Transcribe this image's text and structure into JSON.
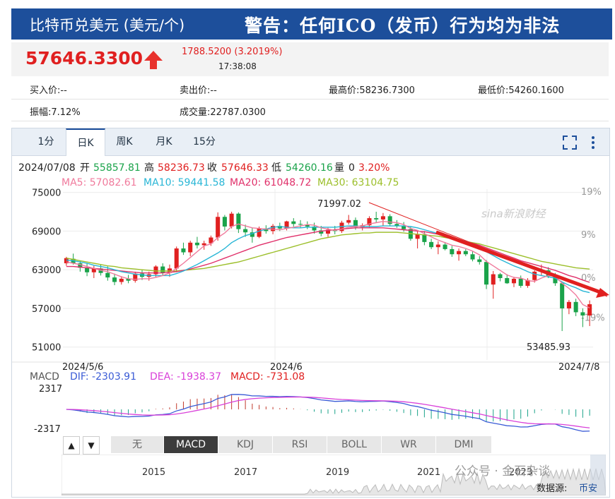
{
  "banner": {
    "title": "比特币兑美元 (美元/个)",
    "warning": "警告：任何ICO（发币）行为均为非法"
  },
  "quote": {
    "price": "57646.3300",
    "change": "1788.5200 (3.2019%)",
    "time": "17:38:08"
  },
  "stats": {
    "bid": "买入价:--",
    "ask": "卖出价:--",
    "high": "最高价:58236.7300",
    "low": "最低价:54260.1600",
    "amplitude": "振幅:7.12%",
    "volume": "成交量:22787.0300"
  },
  "tabs": [
    "1分",
    "日K",
    "周K",
    "月K",
    "15分"
  ],
  "selected_tab": "日K",
  "ohlc_line": {
    "date": "2024/07/08",
    "open_label": "开",
    "open": "55857.81",
    "high_label": "高",
    "high": "58236.73",
    "close_label": "收",
    "close": "57646.33",
    "low_label": "低",
    "low": "54260.16",
    "vol_label": "量",
    "vol": "0",
    "pct": "3.20%"
  },
  "ma_line": {
    "ma5": "MA5: 57082.61",
    "ma10": "MA10: 59441.58",
    "ma20": "MA20: 61048.72",
    "ma30": "MA30: 63104.75"
  },
  "annotations": {
    "peak": "71997.02",
    "trough": "53485.93",
    "watermark": "sina新浪财经"
  },
  "macd_line": {
    "label": "MACD",
    "dif": "DIF: -2303.91",
    "dea": "DEA: -1938.37",
    "macd": "MACD: -731.08"
  },
  "macd_axis": {
    "top": "2317",
    "bottom": "-2317"
  },
  "indicator_buttons": [
    "无",
    "MACD",
    "KDJ",
    "RSI",
    "BOLL",
    "WR",
    "DMI"
  ],
  "selected_indicator": "MACD",
  "overview_years": [
    "2015",
    "2017",
    "2019",
    "2021",
    "2023"
  ],
  "footer": {
    "watermark": "公众号 · 金石杂谈",
    "source": "数据源:",
    "source_name": "币安"
  },
  "colors": {
    "up": "#e02020",
    "down": "#1aa34a",
    "ma5": "#f07a9c",
    "ma10": "#28b6d6",
    "ma20": "#e0306a",
    "ma30": "#9cbf2a",
    "dif": "#3a5bd6",
    "dea": "#d940d9",
    "banner": "#1d4f9b"
  },
  "chart_data": {
    "type": "candlestick",
    "x_ticks": [
      "2024/5/6",
      "2024/6",
      "2024/7/8"
    ],
    "y_ticks": [
      75000,
      69000,
      63000,
      57000,
      51000
    ],
    "ylim": [
      49000,
      75500
    ],
    "pct_ticks": [
      "19%",
      "9%",
      "0%",
      "-19%"
    ],
    "candles": [
      [
        64000,
        65000,
        63600,
        64800
      ],
      [
        64700,
        65500,
        63800,
        64000
      ],
      [
        64000,
        64400,
        62700,
        63300
      ],
      [
        63300,
        64000,
        62000,
        62600
      ],
      [
        62600,
        63600,
        61700,
        63200
      ],
      [
        63200,
        63800,
        62100,
        62500
      ],
      [
        62500,
        63500,
        61300,
        61800
      ],
      [
        61800,
        62400,
        60600,
        61100
      ],
      [
        61100,
        62000,
        60700,
        61600
      ],
      [
        61600,
        62200,
        60900,
        61300
      ],
      [
        61300,
        62700,
        61000,
        62400
      ],
      [
        62400,
        63000,
        61400,
        61900
      ],
      [
        61900,
        62700,
        61300,
        62300
      ],
      [
        62300,
        63700,
        61900,
        63500
      ],
      [
        63500,
        64000,
        62100,
        62500
      ],
      [
        62500,
        63800,
        61900,
        63200
      ],
      [
        63200,
        66600,
        62600,
        66300
      ],
      [
        66300,
        67200,
        65300,
        65700
      ],
      [
        65700,
        67500,
        65100,
        67200
      ],
      [
        67200,
        68100,
        66300,
        66800
      ],
      [
        66800,
        67500,
        66100,
        67100
      ],
      [
        67100,
        68300,
        66700,
        68000
      ],
      [
        68000,
        71900,
        67500,
        71200
      ],
      [
        71200,
        71500,
        69100,
        69700
      ],
      [
        69700,
        72000,
        69400,
        71700
      ],
      [
        71700,
        71900,
        68700,
        69300
      ],
      [
        69300,
        70000,
        68100,
        68800
      ],
      [
        68800,
        69500,
        67200,
        68100
      ],
      [
        68100,
        69700,
        67900,
        69400
      ],
      [
        69400,
        69900,
        68600,
        69000
      ],
      [
        69000,
        70100,
        68500,
        69800
      ],
      [
        69800,
        70300,
        69000,
        69400
      ],
      [
        69400,
        70600,
        69100,
        70500
      ],
      [
        70500,
        71000,
        69700,
        70100
      ],
      [
        70100,
        70700,
        69500,
        70000
      ],
      [
        70000,
        70500,
        69300,
        69700
      ],
      [
        69700,
        70300,
        68600,
        69100
      ],
      [
        69100,
        69800,
        68200,
        68600
      ],
      [
        68600,
        69500,
        68100,
        69200
      ],
      [
        69200,
        69800,
        68500,
        69000
      ],
      [
        69000,
        70600,
        68700,
        70300
      ],
      [
        70300,
        71500,
        70000,
        70700
      ],
      [
        70700,
        71100,
        69200,
        69600
      ],
      [
        69600,
        70200,
        69100,
        69900
      ],
      [
        69900,
        71300,
        69500,
        71000
      ],
      [
        71000,
        71997,
        70300,
        70800
      ],
      [
        70800,
        71800,
        69800,
        71300
      ],
      [
        71300,
        71600,
        69800,
        70100
      ],
      [
        70100,
        70700,
        69500,
        69800
      ],
      [
        69800,
        70400,
        68900,
        69300
      ],
      [
        69300,
        69700,
        67500,
        67800
      ],
      [
        67800,
        69100,
        66300,
        68500
      ],
      [
        68500,
        69000,
        66800,
        67300
      ],
      [
        67300,
        67800,
        66200,
        66500
      ],
      [
        66500,
        67400,
        65400,
        66900
      ],
      [
        66900,
        67300,
        66000,
        66200
      ],
      [
        66200,
        66700,
        65000,
        65400
      ],
      [
        65400,
        66300,
        64400,
        65900
      ],
      [
        65900,
        66200,
        65100,
        65400
      ],
      [
        65400,
        65900,
        64300,
        64600
      ],
      [
        64600,
        65100,
        63800,
        64200
      ],
      [
        64200,
        64500,
        60000,
        60700
      ],
      [
        60700,
        62800,
        58500,
        62300
      ],
      [
        62300,
        62500,
        61200,
        61700
      ],
      [
        61700,
        62300,
        60800,
        60900
      ],
      [
        60900,
        61900,
        60300,
        61600
      ],
      [
        61600,
        62100,
        60200,
        60500
      ],
      [
        60500,
        61700,
        60200,
        61400
      ],
      [
        61400,
        62900,
        61000,
        62700
      ],
      [
        62700,
        63800,
        62100,
        62900
      ],
      [
        62900,
        63400,
        61700,
        62000
      ],
      [
        62000,
        62500,
        60500,
        60900
      ],
      [
        60900,
        61100,
        53486,
        57000
      ],
      [
        57000,
        58300,
        56100,
        58000
      ],
      [
        58000,
        58500,
        55800,
        56400
      ],
      [
        56400,
        57000,
        54100,
        55900
      ],
      [
        55900,
        58237,
        54260,
        57646
      ]
    ],
    "ma5": [
      64200,
      64000,
      63800,
      63500,
      63200,
      62900,
      62700,
      62300,
      61900,
      61600,
      61500,
      61600,
      61600,
      61800,
      62100,
      62500,
      63200,
      64000,
      64900,
      65800,
      66700,
      67000,
      68000,
      68700,
      69700,
      70100,
      69800,
      69500,
      69400,
      69300,
      69300,
      69200,
      69400,
      69600,
      69800,
      70000,
      69900,
      69500,
      69300,
      69100,
      69300,
      69600,
      69700,
      69800,
      70100,
      70300,
      70500,
      70400,
      70300,
      70000,
      69400,
      69100,
      68600,
      68100,
      67600,
      67200,
      66800,
      66600,
      66300,
      65900,
      65300,
      64300,
      63600,
      62900,
      62200,
      61800,
      61700,
      61300,
      61200,
      61700,
      62100,
      62000,
      60900,
      60100,
      59100,
      57600,
      57082
    ],
    "ma10": [
      64500,
      64400,
      64200,
      64000,
      63700,
      63500,
      63300,
      63000,
      62700,
      62500,
      62300,
      62200,
      62100,
      62100,
      62100,
      62100,
      62400,
      62800,
      63300,
      63800,
      64400,
      65000,
      65600,
      66300,
      67200,
      67800,
      68300,
      68600,
      69000,
      69300,
      69600,
      69700,
      69600,
      69500,
      69500,
      69600,
      69600,
      69600,
      69600,
      69600,
      69700,
      69800,
      69800,
      69700,
      69700,
      69700,
      69800,
      69800,
      69800,
      69800,
      69700,
      69500,
      69200,
      68900,
      68600,
      68300,
      68000,
      67700,
      67400,
      67000,
      66500,
      65800,
      65200,
      64600,
      64100,
      63600,
      63200,
      62700,
      62300,
      62100,
      61900,
      61700,
      61100,
      60600,
      60200,
      59700,
      59442
    ],
    "ma20": [
      63500,
      63500,
      63400,
      63300,
      63200,
      63100,
      63000,
      62900,
      62800,
      62700,
      62600,
      62500,
      62500,
      62500,
      62500,
      62600,
      62700,
      62900,
      63100,
      63400,
      63700,
      64000,
      64400,
      64800,
      65200,
      65600,
      66000,
      66400,
      66800,
      67100,
      67400,
      67700,
      68000,
      68200,
      68400,
      68600,
      68800,
      69000,
      69100,
      69200,
      69300,
      69400,
      69500,
      69500,
      69500,
      69500,
      69500,
      69400,
      69300,
      69200,
      69100,
      69000,
      68900,
      68700,
      68500,
      68200,
      68000,
      67700,
      67400,
      67100,
      66800,
      66400,
      66000,
      65600,
      65200,
      64800,
      64400,
      64100,
      63800,
      63500,
      63200,
      62900,
      62500,
      62100,
      61800,
      61400,
      61049
    ],
    "ma30": [
      64800,
      64600,
      64400,
      64200,
      64000,
      63800,
      63600,
      63500,
      63300,
      63200,
      63100,
      63000,
      62900,
      62800,
      62800,
      62800,
      62800,
      62900,
      63000,
      63100,
      63200,
      63400,
      63600,
      63800,
      64000,
      64200,
      64500,
      64800,
      65100,
      65400,
      65700,
      66000,
      66300,
      66600,
      66900,
      67200,
      67500,
      67800,
      68000,
      68200,
      68400,
      68500,
      68600,
      68700,
      68700,
      68800,
      68800,
      68800,
      68800,
      68700,
      68600,
      68500,
      68400,
      68300,
      68200,
      68000,
      67800,
      67600,
      67400,
      67200,
      67000,
      66700,
      66400,
      66100,
      65800,
      65500,
      65200,
      64900,
      64600,
      64300,
      64100,
      63900,
      63700,
      63500,
      63300,
      63200,
      63105
    ],
    "macd_ylim": [
      -2600,
      2600
    ]
  }
}
